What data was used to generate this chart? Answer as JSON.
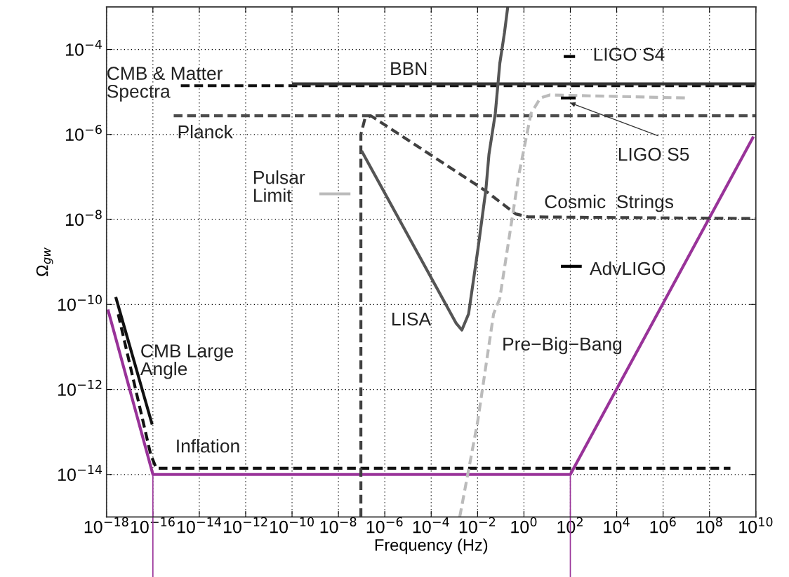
{
  "chart_data": {
    "type": "line",
    "xlabel": "Frequency (Hz)",
    "ylabel": "Ω$_{gw}$",
    "log": "xy",
    "grid": true,
    "xlim": [
      1e-18,
      10000000000.0
    ],
    "ylim": [
      1e-15,
      0.001
    ],
    "xticks": [
      {
        "value": 1e-18,
        "label": "10$^{−18}$"
      },
      {
        "value": 1e-16,
        "label": "10$^{−16}$"
      },
      {
        "value": 1e-14,
        "label": "10$^{−14}$"
      },
      {
        "value": 1e-12,
        "label": "10$^{−12}$"
      },
      {
        "value": 1e-10,
        "label": "10$^{−10}$"
      },
      {
        "value": 1e-08,
        "label": "10$^{−8}$"
      },
      {
        "value": 1e-06,
        "label": "10$^{−6}$"
      },
      {
        "value": 0.0001,
        "label": "10$^{−4}$"
      },
      {
        "value": 0.01,
        "label": "10$^{−2}$"
      },
      {
        "value": 1,
        "label": "10$^{0}$"
      },
      {
        "value": 100,
        "label": "10$^{2}$"
      },
      {
        "value": 10000.0,
        "label": "10$^{4}$"
      },
      {
        "value": 1000000.0,
        "label": "10$^{6}$"
      },
      {
        "value": 100000000.0,
        "label": "10$^{8}$"
      },
      {
        "value": 10000000000.0,
        "label": "10$^{10}$"
      }
    ],
    "yticks": [
      {
        "value": 1e-14,
        "label": "10$^{−14}$"
      },
      {
        "value": 1e-12,
        "label": "10$^{−12}$"
      },
      {
        "value": 1e-10,
        "label": "10$^{−10}$"
      },
      {
        "value": 1e-08,
        "label": "10$^{−8}$"
      },
      {
        "value": 1e-06,
        "label": "10$^{−6}$"
      },
      {
        "value": 0.0001,
        "label": "10$^{−4}$"
      }
    ],
    "series": [
      {
        "color": "#993399",
        "line_style": "solid",
        "x": [
          1.15e-18,
          1e-16,
          100,
          7900000000.0
        ],
        "values": [
          7.6e-11,
          1e-14,
          1e-14,
          8.9e-07
        ]
      },
      {
        "color": "#111111",
        "line_style": "solid",
        "x": [
          2.5e-18,
          9.3e-17
        ],
        "values": [
          1.5e-10,
          1.5e-13
        ]
      },
      {
        "color": "#111111",
        "line_style": "dashed",
        "x": [
          3.2e-18,
          8.1e-17,
          1.4e-16,
          800000000.0
        ],
        "values": [
          5.9e-11,
          2.9e-14,
          1.4e-14,
          1.4e-14
        ]
      },
      {
        "color": "#111111",
        "line_style": "dashed",
        "x": [
          1.6e-15,
          10000000000.0
        ],
        "values": [
          1.4e-05,
          1.4e-05
        ]
      },
      {
        "color": "#333333",
        "line_style": "solid",
        "x": [
          1e-10,
          10000000000.0
        ],
        "values": [
          1.55e-05,
          1.55e-05
        ]
      },
      {
        "color": "#4d4d4d",
        "line_style": "dashed",
        "x": [
          7.9e-16,
          10000000000.0
        ],
        "values": [
          2.75e-06,
          2.75e-06
        ]
      },
      {
        "color": "#bbbbbb",
        "line_style": "solid",
        "x": [
          1.5e-09,
          3.3e-08
        ],
        "values": [
          4e-08,
          4e-08
        ]
      },
      {
        "color": "#404040",
        "line_style": "dashed",
        "x": [
          9.3e-08,
          9.3e-08,
          1.4e-07,
          2.5e-07,
          0.02,
          0.44,
          1.5,
          10000000000.0
        ],
        "values": [
          1e-15,
          1e-06,
          2.4e-06,
          2.75e-06,
          4.9e-08,
          1.35e-08,
          1.15e-08,
          1.05e-08
        ]
      },
      {
        "color": "#555555",
        "line_style": "solid",
        "x": [
          1e-07,
          0.0012,
          0.0021,
          0.0041,
          0.0105,
          0.023,
          0.031,
          0.058,
          0.091,
          0.145,
          0.2
        ],
        "values": [
          4.1e-07,
          3.6e-11,
          2.5e-11,
          6e-11,
          2.1e-09,
          5.2e-08,
          3.4e-07,
          3.1e-06,
          4.7e-05,
          0.00025,
          0.001
        ]
      },
      {
        "color": "#bbbbbb",
        "line_style": "dashed",
        "x": [
          0.0017,
          0.01,
          0.049,
          0.091,
          0.59,
          2.0,
          5.1,
          13,
          11000000.0
        ],
        "values": [
          1e-15,
          1.7e-13,
          6e-11,
          1.4e-10,
          1.05e-07,
          3.1e-06,
          7.2e-06,
          8.5e-06,
          7.2e-06
        ]
      },
      {
        "color": "#000000",
        "line_style": "solid",
        "x": [
          52,
          160
        ],
        "values": [
          6.8e-05,
          6.8e-05
        ]
      },
      {
        "color": "#000000",
        "line_style": "solid",
        "x": [
          39,
          170
        ],
        "values": [
          7.2e-06,
          7.2e-06
        ]
      },
      {
        "color": "#000000",
        "line_style": "solid",
        "x": [
          39,
          310
        ],
        "values": [
          7.9e-10,
          7.9e-10
        ]
      }
    ],
    "ref_lines": [
      {
        "axis": "x",
        "value": 1e-16,
        "color": "#993399"
      },
      {
        "axis": "x",
        "value": 100,
        "color": "#993399"
      }
    ],
    "annotations": [
      "CMB & Matter\nSpectra",
      "BBN",
      "Planck",
      "Pulsar\nLimit",
      "LISA",
      "Pre−Big−Bang",
      "Cosmic  Strings",
      "LIGO S4",
      "LIGO S5",
      "AdvLIGO",
      "CMB Large\nAngle",
      "Inflation"
    ]
  }
}
